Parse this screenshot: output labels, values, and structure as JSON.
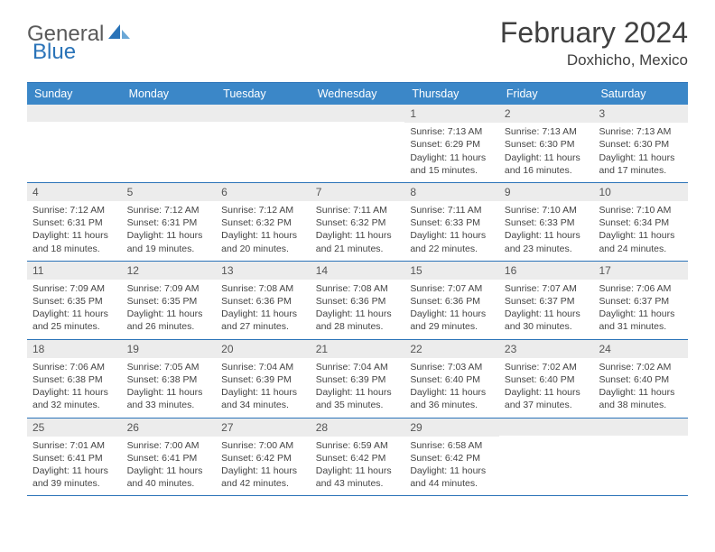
{
  "logo": {
    "word1": "General",
    "word2": "Blue"
  },
  "title": "February 2024",
  "location": "Doxhicho, Mexico",
  "brand_color": "#2a73b8",
  "header_bg": "#3b87c8",
  "daynum_bg": "#ececec",
  "day_names": [
    "Sunday",
    "Monday",
    "Tuesday",
    "Wednesday",
    "Thursday",
    "Friday",
    "Saturday"
  ],
  "weeks": [
    [
      {
        "n": "",
        "sr": "",
        "ss": "",
        "dl": ""
      },
      {
        "n": "",
        "sr": "",
        "ss": "",
        "dl": ""
      },
      {
        "n": "",
        "sr": "",
        "ss": "",
        "dl": ""
      },
      {
        "n": "",
        "sr": "",
        "ss": "",
        "dl": ""
      },
      {
        "n": "1",
        "sr": "Sunrise: 7:13 AM",
        "ss": "Sunset: 6:29 PM",
        "dl": "Daylight: 11 hours and 15 minutes."
      },
      {
        "n": "2",
        "sr": "Sunrise: 7:13 AM",
        "ss": "Sunset: 6:30 PM",
        "dl": "Daylight: 11 hours and 16 minutes."
      },
      {
        "n": "3",
        "sr": "Sunrise: 7:13 AM",
        "ss": "Sunset: 6:30 PM",
        "dl": "Daylight: 11 hours and 17 minutes."
      }
    ],
    [
      {
        "n": "4",
        "sr": "Sunrise: 7:12 AM",
        "ss": "Sunset: 6:31 PM",
        "dl": "Daylight: 11 hours and 18 minutes."
      },
      {
        "n": "5",
        "sr": "Sunrise: 7:12 AM",
        "ss": "Sunset: 6:31 PM",
        "dl": "Daylight: 11 hours and 19 minutes."
      },
      {
        "n": "6",
        "sr": "Sunrise: 7:12 AM",
        "ss": "Sunset: 6:32 PM",
        "dl": "Daylight: 11 hours and 20 minutes."
      },
      {
        "n": "7",
        "sr": "Sunrise: 7:11 AM",
        "ss": "Sunset: 6:32 PM",
        "dl": "Daylight: 11 hours and 21 minutes."
      },
      {
        "n": "8",
        "sr": "Sunrise: 7:11 AM",
        "ss": "Sunset: 6:33 PM",
        "dl": "Daylight: 11 hours and 22 minutes."
      },
      {
        "n": "9",
        "sr": "Sunrise: 7:10 AM",
        "ss": "Sunset: 6:33 PM",
        "dl": "Daylight: 11 hours and 23 minutes."
      },
      {
        "n": "10",
        "sr": "Sunrise: 7:10 AM",
        "ss": "Sunset: 6:34 PM",
        "dl": "Daylight: 11 hours and 24 minutes."
      }
    ],
    [
      {
        "n": "11",
        "sr": "Sunrise: 7:09 AM",
        "ss": "Sunset: 6:35 PM",
        "dl": "Daylight: 11 hours and 25 minutes."
      },
      {
        "n": "12",
        "sr": "Sunrise: 7:09 AM",
        "ss": "Sunset: 6:35 PM",
        "dl": "Daylight: 11 hours and 26 minutes."
      },
      {
        "n": "13",
        "sr": "Sunrise: 7:08 AM",
        "ss": "Sunset: 6:36 PM",
        "dl": "Daylight: 11 hours and 27 minutes."
      },
      {
        "n": "14",
        "sr": "Sunrise: 7:08 AM",
        "ss": "Sunset: 6:36 PM",
        "dl": "Daylight: 11 hours and 28 minutes."
      },
      {
        "n": "15",
        "sr": "Sunrise: 7:07 AM",
        "ss": "Sunset: 6:36 PM",
        "dl": "Daylight: 11 hours and 29 minutes."
      },
      {
        "n": "16",
        "sr": "Sunrise: 7:07 AM",
        "ss": "Sunset: 6:37 PM",
        "dl": "Daylight: 11 hours and 30 minutes."
      },
      {
        "n": "17",
        "sr": "Sunrise: 7:06 AM",
        "ss": "Sunset: 6:37 PM",
        "dl": "Daylight: 11 hours and 31 minutes."
      }
    ],
    [
      {
        "n": "18",
        "sr": "Sunrise: 7:06 AM",
        "ss": "Sunset: 6:38 PM",
        "dl": "Daylight: 11 hours and 32 minutes."
      },
      {
        "n": "19",
        "sr": "Sunrise: 7:05 AM",
        "ss": "Sunset: 6:38 PM",
        "dl": "Daylight: 11 hours and 33 minutes."
      },
      {
        "n": "20",
        "sr": "Sunrise: 7:04 AM",
        "ss": "Sunset: 6:39 PM",
        "dl": "Daylight: 11 hours and 34 minutes."
      },
      {
        "n": "21",
        "sr": "Sunrise: 7:04 AM",
        "ss": "Sunset: 6:39 PM",
        "dl": "Daylight: 11 hours and 35 minutes."
      },
      {
        "n": "22",
        "sr": "Sunrise: 7:03 AM",
        "ss": "Sunset: 6:40 PM",
        "dl": "Daylight: 11 hours and 36 minutes."
      },
      {
        "n": "23",
        "sr": "Sunrise: 7:02 AM",
        "ss": "Sunset: 6:40 PM",
        "dl": "Daylight: 11 hours and 37 minutes."
      },
      {
        "n": "24",
        "sr": "Sunrise: 7:02 AM",
        "ss": "Sunset: 6:40 PM",
        "dl": "Daylight: 11 hours and 38 minutes."
      }
    ],
    [
      {
        "n": "25",
        "sr": "Sunrise: 7:01 AM",
        "ss": "Sunset: 6:41 PM",
        "dl": "Daylight: 11 hours and 39 minutes."
      },
      {
        "n": "26",
        "sr": "Sunrise: 7:00 AM",
        "ss": "Sunset: 6:41 PM",
        "dl": "Daylight: 11 hours and 40 minutes."
      },
      {
        "n": "27",
        "sr": "Sunrise: 7:00 AM",
        "ss": "Sunset: 6:42 PM",
        "dl": "Daylight: 11 hours and 42 minutes."
      },
      {
        "n": "28",
        "sr": "Sunrise: 6:59 AM",
        "ss": "Sunset: 6:42 PM",
        "dl": "Daylight: 11 hours and 43 minutes."
      },
      {
        "n": "29",
        "sr": "Sunrise: 6:58 AM",
        "ss": "Sunset: 6:42 PM",
        "dl": "Daylight: 11 hours and 44 minutes."
      },
      {
        "n": "",
        "sr": "",
        "ss": "",
        "dl": ""
      },
      {
        "n": "",
        "sr": "",
        "ss": "",
        "dl": ""
      }
    ]
  ]
}
